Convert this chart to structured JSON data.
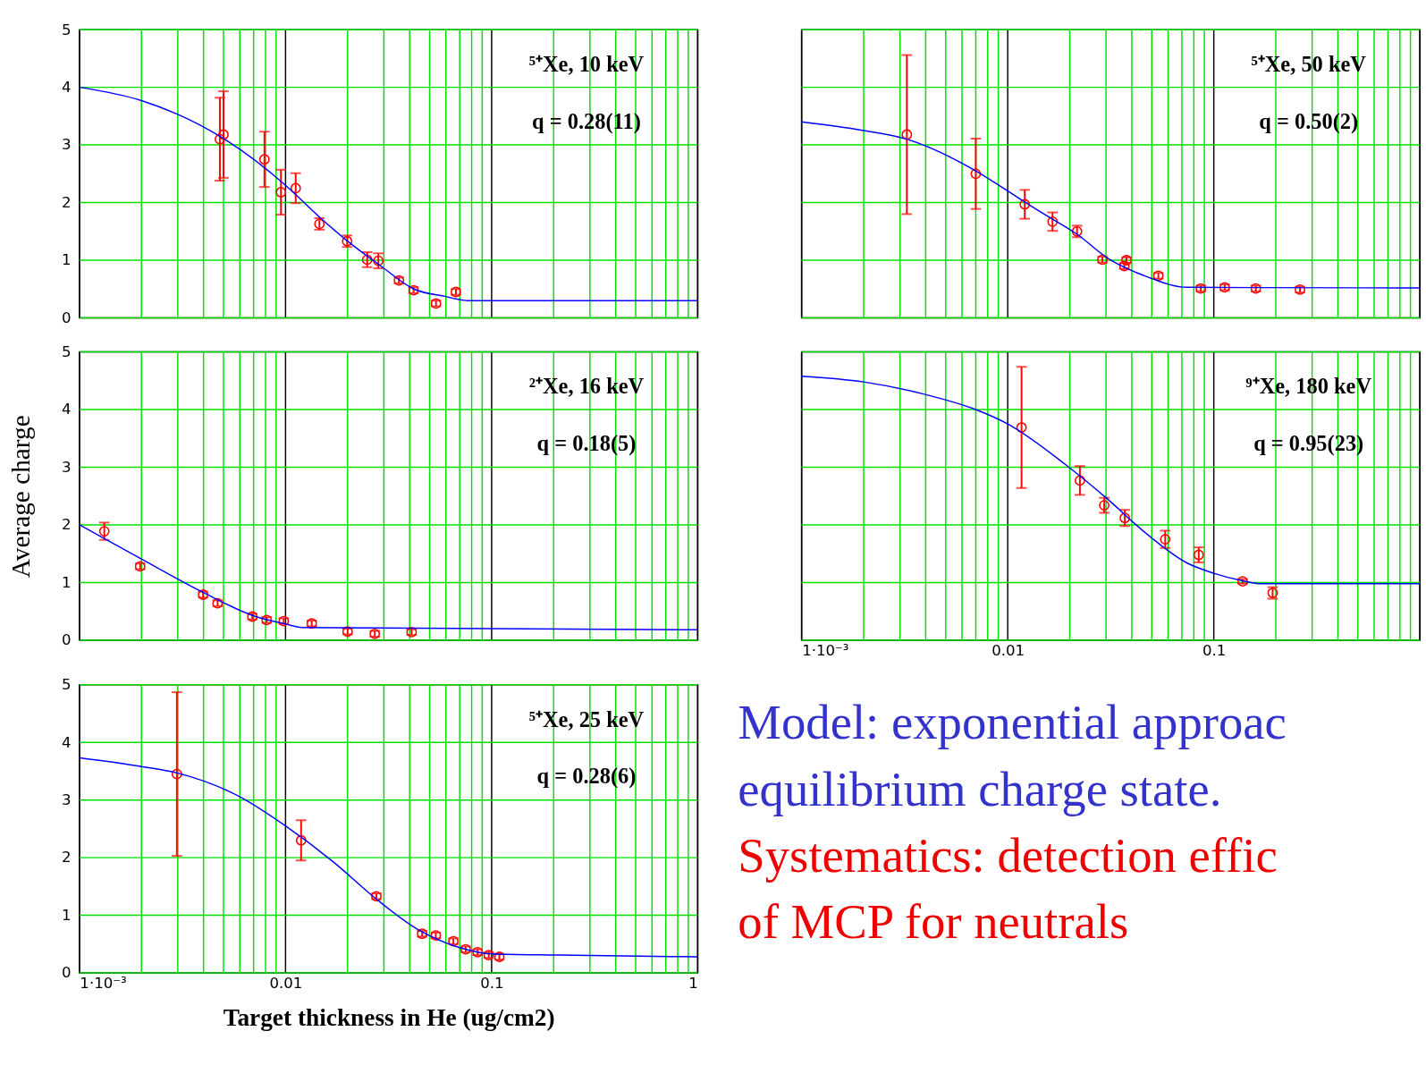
{
  "chart_data": [
    {
      "type": "scatter",
      "marker": "circle",
      "grid": true,
      "log": "x",
      "tick_labels": "y",
      "xlim": [
        0.001,
        1
      ],
      "ylim": [
        0,
        5
      ],
      "yticks": [
        0,
        1,
        2,
        3,
        4,
        5
      ],
      "xticks": [
        {
          "value": 0.001,
          "label": null
        },
        {
          "value": 0.002,
          "label": null
        },
        {
          "value": 0.003,
          "label": null
        },
        {
          "value": 0.004,
          "label": null
        },
        {
          "value": 0.005,
          "label": null
        },
        {
          "value": 0.006,
          "label": null
        },
        {
          "value": 0.007,
          "label": null
        },
        {
          "value": 0.008,
          "label": null
        },
        {
          "value": 0.009,
          "label": null
        },
        {
          "value": 0.01,
          "label": null
        },
        {
          "value": 0.02,
          "label": null
        },
        {
          "value": 0.03,
          "label": null
        },
        {
          "value": 0.04,
          "label": null
        },
        {
          "value": 0.05,
          "label": null
        },
        {
          "value": 0.06,
          "label": null
        },
        {
          "value": 0.07,
          "label": null
        },
        {
          "value": 0.08,
          "label": null
        },
        {
          "value": 0.09,
          "label": null
        },
        {
          "value": 0.1,
          "label": null
        },
        {
          "value": 0.2,
          "label": null
        },
        {
          "value": 0.3,
          "label": null
        },
        {
          "value": 0.4,
          "label": null
        },
        {
          "value": 0.5,
          "label": null
        },
        {
          "value": 0.6,
          "label": null
        },
        {
          "value": 0.7,
          "label": null
        },
        {
          "value": 0.8,
          "label": null
        },
        {
          "value": 0.9,
          "label": null
        },
        {
          "value": 1,
          "label": null
        }
      ],
      "annotations": [
        "⁵⁺Xe, 10 keV",
        "q = 0.28(11)"
      ],
      "series": [
        {
          "type": "scatter",
          "color": "#ff0000",
          "x": [
            0.0048,
            0.005,
            0.0079,
            0.0095,
            0.0112,
            0.0146,
            0.0199,
            0.0249,
            0.0282,
            0.0355,
            0.0418,
            0.0537,
            0.0671
          ],
          "values": [
            3.1,
            3.18,
            2.75,
            2.18,
            2.25,
            1.63,
            1.33,
            1.01,
            0.99,
            0.65,
            0.48,
            0.25,
            0.45
          ],
          "errors": [
            0.72,
            0.75,
            0.48,
            0.39,
            0.26,
            0.1,
            0.1,
            0.13,
            0.13,
            0.05,
            0.05,
            0.05,
            0.05
          ]
        },
        {
          "type": "line",
          "marker": "none",
          "color": "#0000ff",
          "x": [
            0.001,
            0.002,
            0.003,
            0.0048,
            0.01,
            0.0146,
            0.0205,
            0.029,
            0.042,
            0.06,
            0.076,
            1
          ],
          "values": [
            4.0,
            3.77,
            3.53,
            3.15,
            2.3,
            1.75,
            1.3,
            0.9,
            0.5,
            0.37,
            0.3,
            0.3
          ]
        }
      ]
    },
    {
      "type": "scatter",
      "marker": "circle",
      "grid": true,
      "log": "x",
      "tick_labels": false,
      "xlim": [
        0.001,
        1
      ],
      "ylim": [
        0,
        5
      ],
      "yticks": [
        0,
        1,
        2,
        3,
        4,
        5
      ],
      "xticks": [
        {
          "value": 0.001,
          "label": null
        },
        {
          "value": 0.002,
          "label": null
        },
        {
          "value": 0.003,
          "label": null
        },
        {
          "value": 0.004,
          "label": null
        },
        {
          "value": 0.005,
          "label": null
        },
        {
          "value": 0.006,
          "label": null
        },
        {
          "value": 0.007,
          "label": null
        },
        {
          "value": 0.008,
          "label": null
        },
        {
          "value": 0.009,
          "label": null
        },
        {
          "value": 0.01,
          "label": null
        },
        {
          "value": 0.02,
          "label": null
        },
        {
          "value": 0.03,
          "label": null
        },
        {
          "value": 0.04,
          "label": null
        },
        {
          "value": 0.05,
          "label": null
        },
        {
          "value": 0.06,
          "label": null
        },
        {
          "value": 0.07,
          "label": null
        },
        {
          "value": 0.08,
          "label": null
        },
        {
          "value": 0.09,
          "label": null
        },
        {
          "value": 0.1,
          "label": null
        },
        {
          "value": 0.2,
          "label": null
        },
        {
          "value": 0.3,
          "label": null
        },
        {
          "value": 0.4,
          "label": null
        },
        {
          "value": 0.5,
          "label": null
        },
        {
          "value": 0.6,
          "label": null
        },
        {
          "value": 0.7,
          "label": null
        },
        {
          "value": 0.8,
          "label": null
        },
        {
          "value": 0.9,
          "label": null
        },
        {
          "value": 1,
          "label": null
        }
      ],
      "annotations": [
        "⁵⁺Xe, 50 keV",
        "q = 0.50(2)"
      ],
      "series": [
        {
          "type": "scatter",
          "color": "#ff0000",
          "x": [
            0.00324,
            0.007,
            0.0121,
            0.0165,
            0.0217,
            0.0288,
            0.0368,
            0.0377,
            0.0538,
            0.0865,
            0.113,
            0.16,
            0.262
          ],
          "values": [
            3.18,
            2.5,
            1.97,
            1.67,
            1.5,
            1.01,
            0.9,
            1.0,
            0.73,
            0.51,
            0.53,
            0.51,
            0.49
          ],
          "errors": [
            1.38,
            0.61,
            0.25,
            0.16,
            0.1,
            0.05,
            0.05,
            0.05,
            0.05,
            0.05,
            0.05,
            0.05,
            0.05
          ]
        },
        {
          "type": "line",
          "marker": "none",
          "color": "#0000ff",
          "x": [
            0.001,
            0.002,
            0.00324,
            0.007,
            0.01,
            0.015,
            0.0217,
            0.031,
            0.047,
            0.074,
            1
          ],
          "values": [
            3.4,
            3.25,
            3.1,
            2.55,
            2.2,
            1.8,
            1.45,
            1.02,
            0.72,
            0.53,
            0.52
          ]
        }
      ]
    },
    {
      "type": "scatter",
      "marker": "circle",
      "grid": true,
      "log": "x",
      "tick_labels": "y",
      "xlim": [
        0.001,
        1
      ],
      "ylim": [
        0,
        5
      ],
      "yticks": [
        0,
        1,
        2,
        3,
        4,
        5
      ],
      "ylabel": "Average charge",
      "xticks": [
        {
          "value": 0.001,
          "label": null
        },
        {
          "value": 0.002,
          "label": null
        },
        {
          "value": 0.003,
          "label": null
        },
        {
          "value": 0.004,
          "label": null
        },
        {
          "value": 0.005,
          "label": null
        },
        {
          "value": 0.006,
          "label": null
        },
        {
          "value": 0.007,
          "label": null
        },
        {
          "value": 0.008,
          "label": null
        },
        {
          "value": 0.009,
          "label": null
        },
        {
          "value": 0.01,
          "label": null
        },
        {
          "value": 0.02,
          "label": null
        },
        {
          "value": 0.03,
          "label": null
        },
        {
          "value": 0.04,
          "label": null
        },
        {
          "value": 0.05,
          "label": null
        },
        {
          "value": 0.06,
          "label": null
        },
        {
          "value": 0.07,
          "label": null
        },
        {
          "value": 0.08,
          "label": null
        },
        {
          "value": 0.09,
          "label": null
        },
        {
          "value": 0.1,
          "label": null
        },
        {
          "value": 0.2,
          "label": null
        },
        {
          "value": 0.3,
          "label": null
        },
        {
          "value": 0.4,
          "label": null
        },
        {
          "value": 0.5,
          "label": null
        },
        {
          "value": 0.6,
          "label": null
        },
        {
          "value": 0.7,
          "label": null
        },
        {
          "value": 0.8,
          "label": null
        },
        {
          "value": 0.9,
          "label": null
        },
        {
          "value": 1,
          "label": null
        }
      ],
      "annotations": [
        "²⁺Xe, 16 keV",
        "q = 0.18(5)"
      ],
      "series": [
        {
          "type": "scatter",
          "color": "#ff0000",
          "x": [
            0.00132,
            0.00197,
            0.00398,
            0.00468,
            0.0069,
            0.0081,
            0.0098,
            0.0134,
            0.02,
            0.0271,
            0.0409
          ],
          "values": [
            1.89,
            1.28,
            0.79,
            0.64,
            0.41,
            0.35,
            0.33,
            0.29,
            0.15,
            0.11,
            0.14
          ],
          "errors": [
            0.15,
            0.05,
            0.05,
            0.05,
            0.05,
            0.05,
            0.05,
            0.05,
            0.05,
            0.05,
            0.05
          ]
        },
        {
          "type": "line",
          "marker": "none",
          "color": "#0000ff",
          "x": [
            0.001,
            0.00197,
            0.00398,
            0.0069,
            0.01,
            0.012,
            1
          ],
          "values": [
            2.0,
            1.42,
            0.83,
            0.43,
            0.28,
            0.22,
            0.18
          ]
        }
      ]
    },
    {
      "type": "scatter",
      "marker": "circle",
      "grid": true,
      "log": "x",
      "tick_labels": "x",
      "xlim": [
        0.001,
        1
      ],
      "ylim": [
        0,
        5
      ],
      "yticks": [
        0,
        1,
        2,
        3,
        4,
        5
      ],
      "xticks": [
        {
          "value": 0.001,
          "label": "1·10⁻³"
        },
        {
          "value": 0.002,
          "label": null
        },
        {
          "value": 0.003,
          "label": null
        },
        {
          "value": 0.004,
          "label": null
        },
        {
          "value": 0.005,
          "label": null
        },
        {
          "value": 0.006,
          "label": null
        },
        {
          "value": 0.007,
          "label": null
        },
        {
          "value": 0.008,
          "label": null
        },
        {
          "value": 0.009,
          "label": null
        },
        {
          "value": 0.01,
          "label": "0.01"
        },
        {
          "value": 0.02,
          "label": null
        },
        {
          "value": 0.03,
          "label": null
        },
        {
          "value": 0.04,
          "label": null
        },
        {
          "value": 0.05,
          "label": null
        },
        {
          "value": 0.06,
          "label": null
        },
        {
          "value": 0.07,
          "label": null
        },
        {
          "value": 0.08,
          "label": null
        },
        {
          "value": 0.09,
          "label": null
        },
        {
          "value": 0.1,
          "label": "0.1"
        },
        {
          "value": 0.2,
          "label": null
        },
        {
          "value": 0.3,
          "label": null
        },
        {
          "value": 0.4,
          "label": null
        },
        {
          "value": 0.5,
          "label": null
        },
        {
          "value": 0.6,
          "label": null
        },
        {
          "value": 0.7,
          "label": null
        },
        {
          "value": 0.8,
          "label": null
        },
        {
          "value": 0.9,
          "label": null
        },
        {
          "value": 1,
          "label": null
        }
      ],
      "annotations": [
        "⁹⁺Xe, 180 keV",
        "q = 0.95(23)"
      ],
      "series": [
        {
          "type": "scatter",
          "color": "#ff0000",
          "x": [
            0.01167,
            0.0224,
            0.0294,
            0.037,
            0.0581,
            0.0845,
            0.138,
            0.193
          ],
          "values": [
            3.69,
            2.77,
            2.34,
            2.12,
            1.75,
            1.48,
            1.02,
            0.82
          ],
          "errors": [
            1.05,
            0.25,
            0.13,
            0.14,
            0.15,
            0.13,
            0.04,
            0.1
          ]
        },
        {
          "type": "line",
          "marker": "none",
          "color": "#0000ff",
          "x": [
            0.001,
            0.002,
            0.0039,
            0.007,
            0.01,
            0.019,
            0.03,
            0.047,
            0.074,
            0.1,
            0.138,
            0.17,
            1
          ],
          "values": [
            4.58,
            4.48,
            4.27,
            4.0,
            3.75,
            3.05,
            2.47,
            1.85,
            1.34,
            1.16,
            1.03,
            0.98,
            0.98
          ]
        }
      ]
    },
    {
      "type": "scatter",
      "marker": "circle",
      "grid": true,
      "log": "x",
      "xlim": [
        0.001,
        1
      ],
      "ylim": [
        0,
        5
      ],
      "yticks": [
        0,
        1,
        2,
        3,
        4,
        5
      ],
      "xlabel": "Target thickness in He (ug/cm2)",
      "xticks": [
        {
          "value": 0.001,
          "label": "1·10⁻³"
        },
        {
          "value": 0.002,
          "label": null
        },
        {
          "value": 0.003,
          "label": null
        },
        {
          "value": 0.004,
          "label": null
        },
        {
          "value": 0.005,
          "label": null
        },
        {
          "value": 0.006,
          "label": null
        },
        {
          "value": 0.007,
          "label": null
        },
        {
          "value": 0.008,
          "label": null
        },
        {
          "value": 0.009,
          "label": null
        },
        {
          "value": 0.01,
          "label": "0.01"
        },
        {
          "value": 0.02,
          "label": null
        },
        {
          "value": 0.03,
          "label": null
        },
        {
          "value": 0.04,
          "label": null
        },
        {
          "value": 0.05,
          "label": null
        },
        {
          "value": 0.06,
          "label": null
        },
        {
          "value": 0.07,
          "label": null
        },
        {
          "value": 0.08,
          "label": null
        },
        {
          "value": 0.09,
          "label": null
        },
        {
          "value": 0.1,
          "label": "0.1"
        },
        {
          "value": 0.2,
          "label": null
        },
        {
          "value": 0.3,
          "label": null
        },
        {
          "value": 0.4,
          "label": null
        },
        {
          "value": 0.5,
          "label": null
        },
        {
          "value": 0.6,
          "label": null
        },
        {
          "value": 0.7,
          "label": null
        },
        {
          "value": 0.8,
          "label": null
        },
        {
          "value": 0.9,
          "label": null
        },
        1
      ],
      "annotations": [
        "⁵⁺Xe, 25 keV",
        "q = 0.28(6)"
      ],
      "series": [
        {
          "type": "scatter",
          "color": "#ff0000",
          "x": [
            0.00297,
            0.0119,
            0.0276,
            0.046,
            0.0536,
            0.0652,
            0.0748,
            0.0855,
            0.0968,
            0.109
          ],
          "values": [
            3.45,
            2.3,
            1.33,
            0.68,
            0.65,
            0.55,
            0.41,
            0.36,
            0.31,
            0.28
          ],
          "errors": [
            1.42,
            0.35,
            0.05,
            0.05,
            0.05,
            0.05,
            0.05,
            0.05,
            0.05,
            0.05
          ]
        },
        {
          "type": "line",
          "marker": "none",
          "color": "#0000ff",
          "x": [
            0.001,
            0.002,
            0.00297,
            0.0059,
            0.01,
            0.017,
            0.0276,
            0.044,
            0.07,
            0.1,
            0.21,
            1
          ],
          "values": [
            3.73,
            3.58,
            3.47,
            3.07,
            2.55,
            1.93,
            1.28,
            0.75,
            0.44,
            0.33,
            0.31,
            0.28
          ]
        }
      ]
    },
    {
      "type": "other",
      "annotations": [
        "Model: exponential approac",
        "equilibrium charge state.",
        "Systematics: detection effic",
        "of MCP for neutrals"
      ]
    }
  ]
}
